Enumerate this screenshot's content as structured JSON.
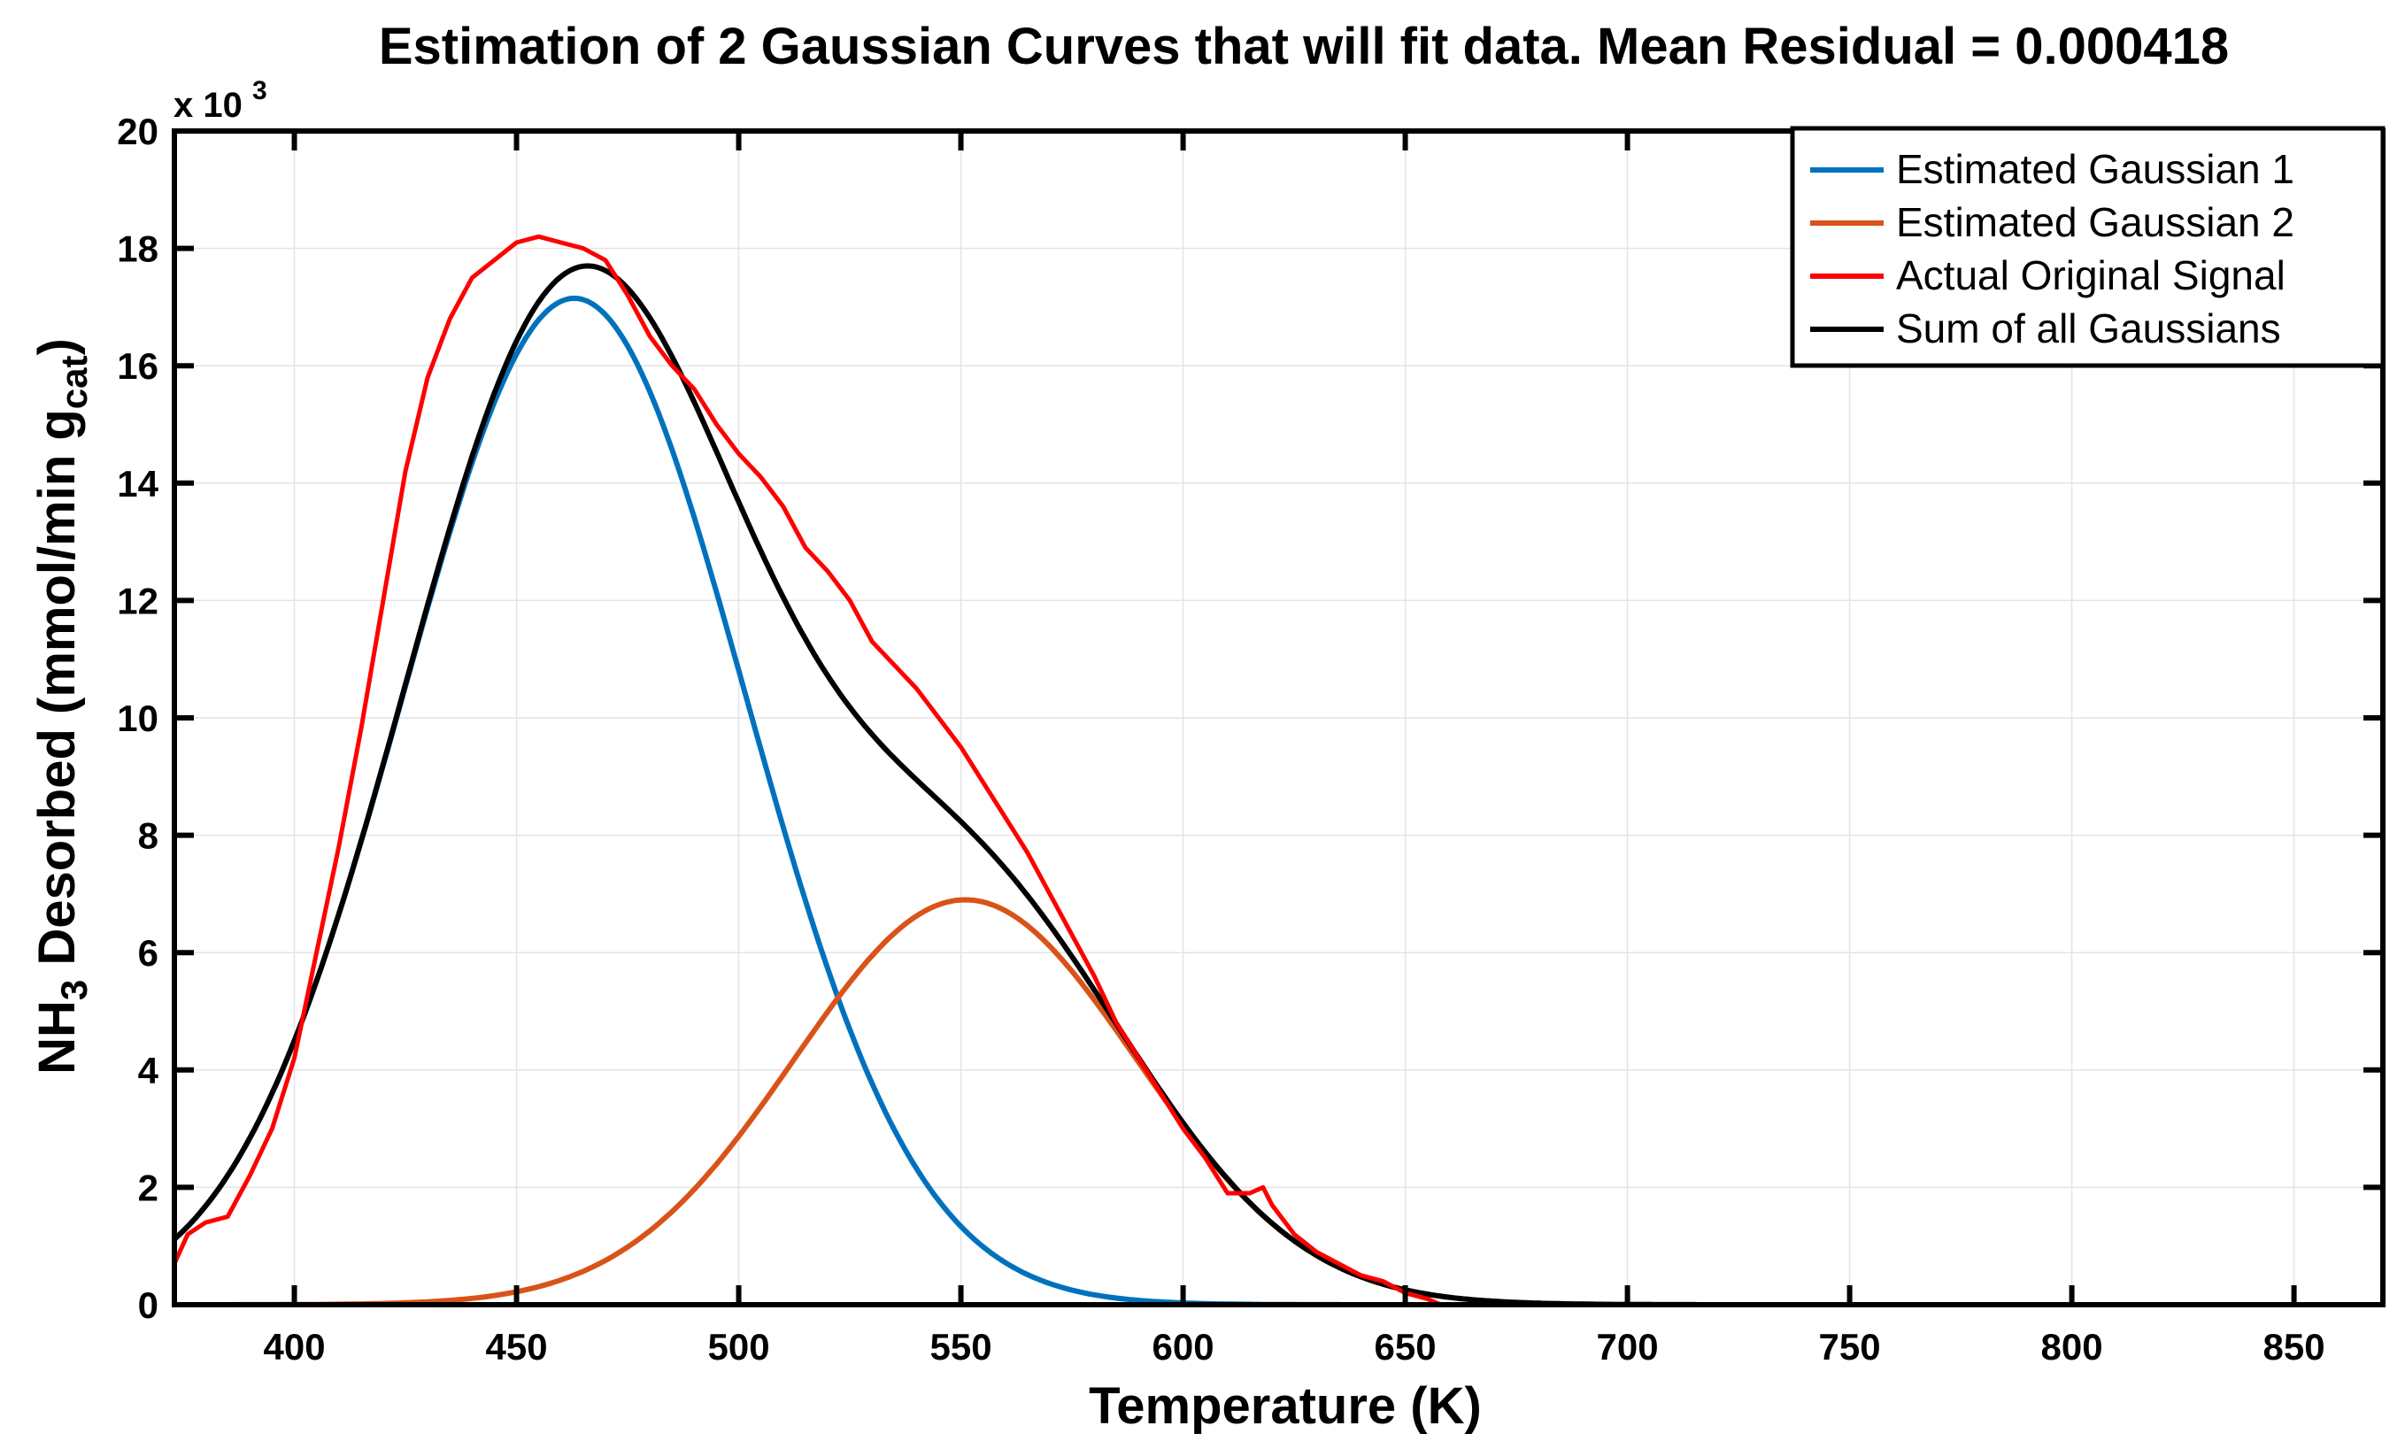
{
  "chart_data": {
    "type": "line",
    "title": "Estimation of 2 Gaussian Curves that will fit data. Mean Residual = 0.000418",
    "xlabel": "Temperature (K)",
    "ylabel": {
      "prefix": "NH",
      "prefix_sub": "3",
      "main": " Desorbed (mmol/min g",
      "main_sub": "cat",
      "suffix": ")"
    },
    "y_multiplier": {
      "base": "x 10",
      "exp": "3"
    },
    "xlim": [
      373,
      870
    ],
    "ylim": [
      0,
      20
    ],
    "xticks": [
      400,
      450,
      500,
      550,
      600,
      650,
      700,
      750,
      800,
      850
    ],
    "xtick_labels": [
      "400",
      "450",
      "500",
      "550",
      "600",
      "650",
      "700",
      "750",
      "800",
      "850"
    ],
    "yticks": [
      0,
      2,
      4,
      6,
      8,
      10,
      12,
      14,
      16,
      18,
      20
    ],
    "ytick_labels": [
      "0",
      "2",
      "4",
      "6",
      "8",
      "10",
      "12",
      "14",
      "16",
      "18",
      "20"
    ],
    "grid": true,
    "legend_position": "top-right",
    "series": [
      {
        "name": "Estimated Gaussian 1",
        "color": "#0072BD",
        "kind": "gaussian",
        "amplitude": 17.15,
        "center": 463,
        "sigma": 38.5,
        "x_range": [
          373,
          870
        ]
      },
      {
        "name": "Estimated Gaussian 2",
        "color": "#D95319",
        "kind": "gaussian",
        "amplitude": 6.9,
        "center": 551,
        "sigma": 38.5,
        "x_range": [
          373,
          870
        ]
      },
      {
        "name": "Actual Original Signal",
        "color": "#FF0000",
        "kind": "points",
        "x": [
          373,
          376,
          380,
          385,
          390,
          395,
          400,
          405,
          410,
          415,
          420,
          425,
          430,
          435,
          440,
          445,
          450,
          455,
          460,
          465,
          470,
          475,
          480,
          485,
          490,
          495,
          500,
          505,
          510,
          515,
          520,
          525,
          530,
          535,
          540,
          545,
          550,
          555,
          560,
          565,
          570,
          575,
          580,
          585,
          590,
          595,
          600,
          605,
          610,
          615,
          618,
          620,
          625,
          630,
          635,
          640,
          645,
          650,
          655,
          658
        ],
        "y": [
          0.7,
          1.2,
          1.4,
          1.5,
          2.2,
          3.0,
          4.2,
          6.0,
          7.8,
          9.8,
          12.0,
          14.2,
          15.8,
          16.8,
          17.5,
          17.8,
          18.1,
          18.2,
          18.1,
          18.0,
          17.8,
          17.2,
          16.5,
          16.0,
          15.6,
          15.0,
          14.5,
          14.1,
          13.6,
          12.9,
          12.5,
          12.0,
          11.3,
          10.9,
          10.5,
          10.0,
          9.5,
          8.9,
          8.3,
          7.7,
          7.0,
          6.3,
          5.6,
          4.8,
          4.2,
          3.6,
          3.0,
          2.5,
          1.9,
          1.9,
          2.0,
          1.7,
          1.2,
          0.9,
          0.7,
          0.5,
          0.4,
          0.2,
          0.1,
          0.0
        ]
      },
      {
        "name": "Sum of all Gaussians",
        "color": "#000000",
        "kind": "sum",
        "components": [
          0,
          1
        ],
        "x_range": [
          373,
          870
        ]
      }
    ]
  }
}
